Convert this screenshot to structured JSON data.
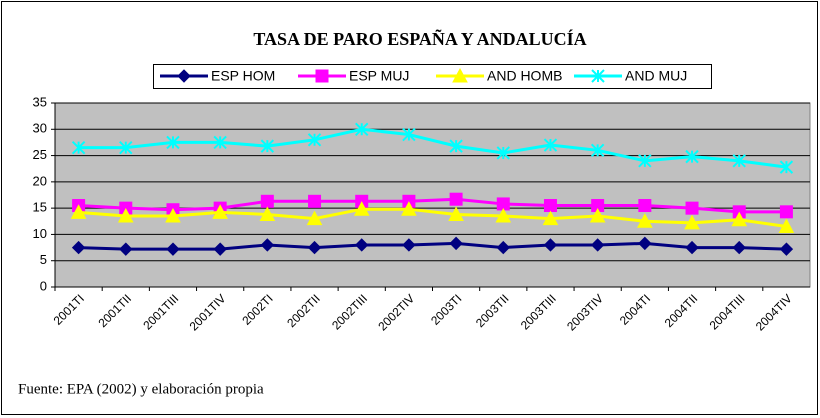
{
  "chart_data": {
    "type": "line",
    "title": "TASA DE PARO ESPAÑA Y ANDALUCÍA",
    "source": "Fuente: EPA (2002) y elaboración propia",
    "categories": [
      "2001TI",
      "2001TII",
      "2001TIII",
      "2001TIV",
      "2002TI",
      "2002TII",
      "2002TIII",
      "2002TIV",
      "2003TI",
      "2003TII",
      "2003TIII",
      "2003TIV",
      "2004TI",
      "2004TII",
      "2004TIII",
      "2004TIV"
    ],
    "series": [
      {
        "name": "ESP HOM",
        "color": "#000080",
        "marker": "diamond",
        "values": [
          7.5,
          7.2,
          7.2,
          7.2,
          8,
          7.5,
          8,
          8,
          8.3,
          7.5,
          8,
          8,
          8.3,
          7.5,
          7.5,
          7.2
        ]
      },
      {
        "name": "ESP MUJ",
        "color": "#ff00ff",
        "marker": "square",
        "values": [
          15.5,
          15,
          14.7,
          15,
          16.3,
          16.3,
          16.3,
          16.3,
          16.7,
          15.8,
          15.5,
          15.5,
          15.5,
          15,
          14.3,
          14.3
        ]
      },
      {
        "name": "AND HOMB",
        "color": "#ffff00",
        "marker": "triangle",
        "values": [
          14.2,
          13.5,
          13.5,
          14.2,
          13.8,
          13,
          14.8,
          14.8,
          13.8,
          13.5,
          13,
          13.5,
          12.5,
          12.2,
          12.8,
          11.5
        ]
      },
      {
        "name": "AND MUJ",
        "color": "#00ffff",
        "marker": "star",
        "values": [
          26.5,
          26.5,
          27.5,
          27.5,
          26.8,
          28,
          30,
          29,
          26.8,
          25.5,
          27,
          26,
          24,
          24.8,
          24,
          22.8
        ]
      }
    ],
    "ylim": [
      0,
      35
    ],
    "yticks": [
      0,
      5,
      10,
      15,
      20,
      25,
      30,
      35
    ],
    "grid": true,
    "legend": "top"
  }
}
